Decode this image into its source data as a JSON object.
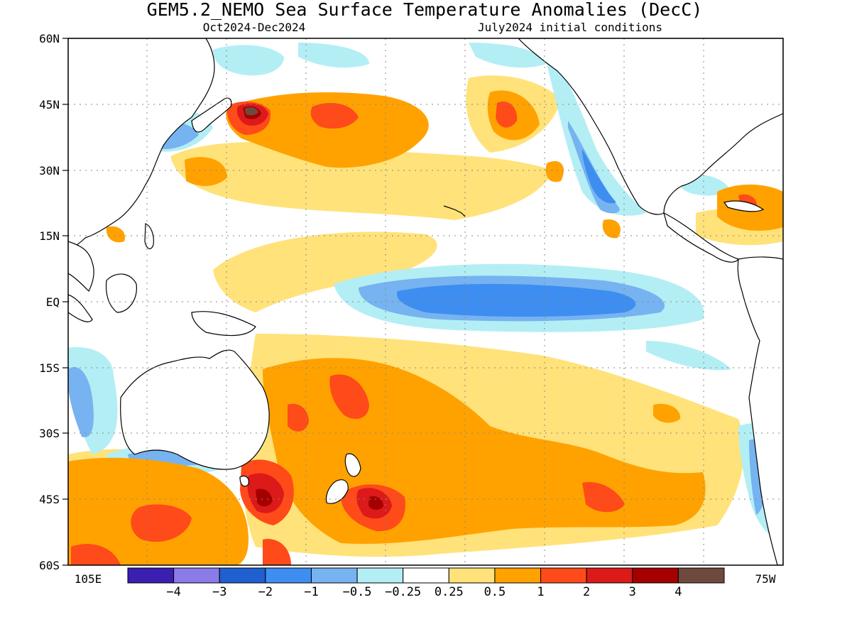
{
  "title": "GEM5.2_NEMO Sea Surface Temperature Anomalies (DecC)",
  "subtitle_left": "Oct2024-Dec2024",
  "subtitle_right": "July2024 initial conditions",
  "lat_labels": [
    "60N",
    "45N",
    "30N",
    "15N",
    "EQ",
    "15S",
    "30S",
    "45S",
    "60S"
  ],
  "lon_left_label": "105E",
  "lon_right_label": "75W",
  "colorbar": {
    "colors": [
      "#3a1fb0",
      "#8b7be8",
      "#1f5fd0",
      "#3d8ef0",
      "#76b3f0",
      "#b3eef5",
      "#ffffff",
      "#ffe27a",
      "#ffa200",
      "#ff4a1a",
      "#dc1a1a",
      "#a50000",
      "#6e4a3e"
    ],
    "labels": [
      "-4",
      "-3",
      "-2",
      "-1",
      "-0.5",
      "-0.25",
      "0.25",
      "0.5",
      "1",
      "2",
      "3",
      "4"
    ]
  },
  "colors": {
    "neg_strong": "#3d8ef0",
    "neg_mid": "#76b3f0",
    "neg_weak": "#b3eef5",
    "pos_weak": "#ffe27a",
    "pos_mid": "#ffa200",
    "pos_strong": "#ff4a1a",
    "pos_vstrong": "#dc1a1a",
    "pos_extreme": "#a50000",
    "pos_max": "#6e4a3e",
    "land": "#ffffff",
    "coast": "#000000"
  }
}
